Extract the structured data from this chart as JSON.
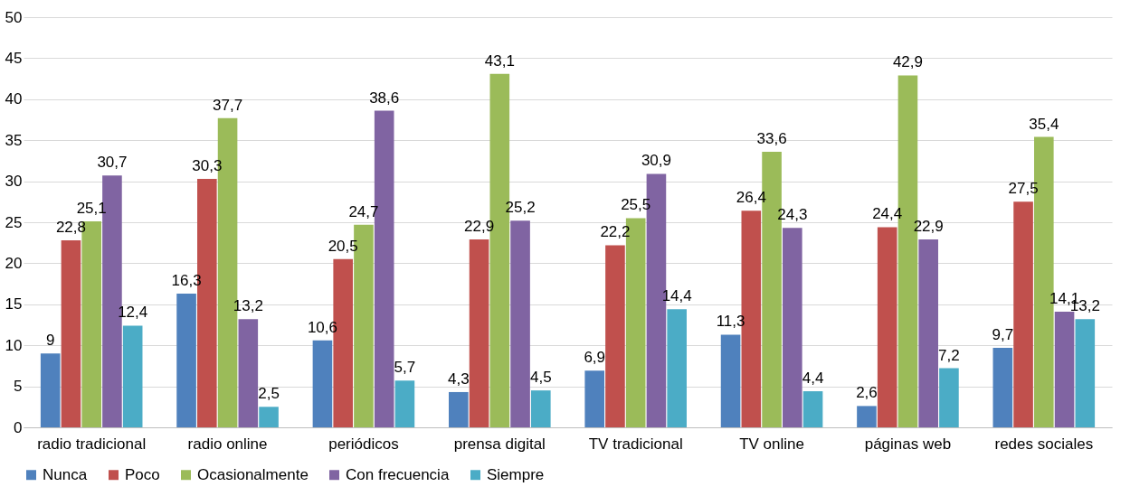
{
  "chart_data": {
    "type": "bar",
    "categories": [
      "radio tradicional",
      "radio online",
      "periódicos",
      "prensa digital",
      "TV tradicional",
      "TV online",
      "páginas web",
      "redes sociales"
    ],
    "series": [
      {
        "name": "Nunca",
        "color": "#4f81bd",
        "values": [
          9,
          16.3,
          10.6,
          4.3,
          6.9,
          11.3,
          2.6,
          9.7
        ],
        "value_labels": [
          "9",
          "16,3",
          "10,6",
          "4,3",
          "6,9",
          "11,3",
          "2,6",
          "9,7"
        ]
      },
      {
        "name": "Poco",
        "color": "#c0504d",
        "values": [
          22.8,
          30.3,
          20.5,
          22.9,
          22.2,
          26.4,
          24.4,
          27.5
        ],
        "value_labels": [
          "22,8",
          "30,3",
          "20,5",
          "22,9",
          "22,2",
          "26,4",
          "24,4",
          "27,5"
        ]
      },
      {
        "name": "Ocasionalmente",
        "color": "#9bbb59",
        "values": [
          25.1,
          37.7,
          24.7,
          43.1,
          25.5,
          33.6,
          42.9,
          35.4
        ],
        "value_labels": [
          "25,1",
          "37,7",
          "24,7",
          "43,1",
          "25,5",
          "33,6",
          "42,9",
          "35,4"
        ]
      },
      {
        "name": "Con frecuencia",
        "color": "#8064a2",
        "values": [
          30.7,
          13.2,
          38.6,
          25.2,
          30.9,
          24.3,
          22.9,
          14.1
        ],
        "value_labels": [
          "30,7",
          "13,2",
          "38,6",
          "25,2",
          "30,9",
          "24,3",
          "22,9",
          "14,1"
        ]
      },
      {
        "name": "Siempre",
        "color": "#4bacc6",
        "values": [
          12.4,
          2.5,
          5.7,
          4.5,
          14.4,
          4.4,
          7.2,
          13.2
        ],
        "value_labels": [
          "12,4",
          "2,5",
          "5,7",
          "4,5",
          "14,4",
          "4,4",
          "7,2",
          "13,2"
        ]
      }
    ],
    "ylim": [
      0,
      50
    ],
    "yticks": [
      0,
      5,
      10,
      15,
      20,
      25,
      30,
      35,
      40,
      45,
      50
    ],
    "grid": "y",
    "legend": "bottom"
  }
}
